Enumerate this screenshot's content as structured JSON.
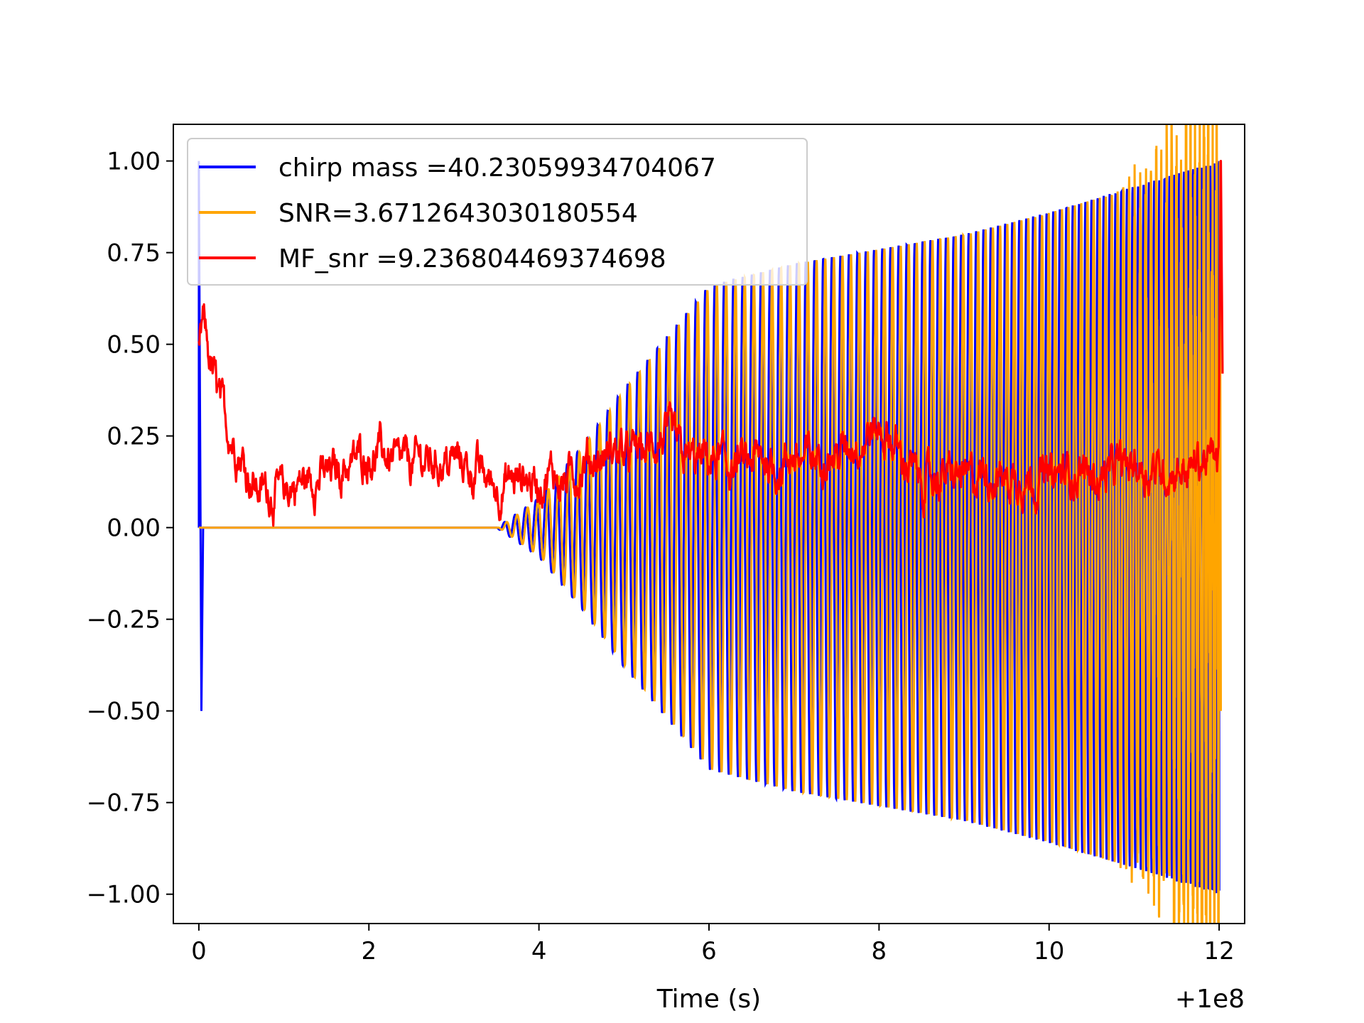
{
  "chart_data": {
    "type": "line",
    "title": "",
    "xlabel": "Time (s)",
    "ylabel": "",
    "x_offset_label": "+1e8",
    "xlim": [
      -0.3,
      12.3
    ],
    "ylim": [
      -1.08,
      1.1
    ],
    "xticks": [
      0,
      2,
      4,
      6,
      8,
      10,
      12
    ],
    "xtick_labels": [
      "0",
      "2",
      "4",
      "6",
      "8",
      "10",
      "12"
    ],
    "yticks": [
      1.0,
      0.75,
      0.5,
      0.25,
      0.0,
      -0.25,
      -0.5,
      -0.75,
      -1.0
    ],
    "ytick_labels": [
      "1.00",
      "0.75",
      "0.50",
      "0.25",
      "0.00",
      "−0.25",
      "−0.50",
      "−0.75",
      "−1.00"
    ],
    "grid": false,
    "legend_position": "upper-left",
    "series": [
      {
        "name": "chirp mass =40.23059934704067",
        "color": "#0000ff",
        "kind": "chirp-waveform",
        "spike_points": [
          [
            0.0,
            0.0
          ],
          [
            0.0,
            1.0
          ],
          [
            0.03,
            -0.5
          ],
          [
            0.05,
            0.0
          ]
        ],
        "zero_until": 3.5,
        "merger_time": 12.0,
        "envelope": [
          [
            3.5,
            0.0
          ],
          [
            4.0,
            0.08
          ],
          [
            4.5,
            0.22
          ],
          [
            5.0,
            0.38
          ],
          [
            5.5,
            0.52
          ],
          [
            6.0,
            0.66
          ],
          [
            7.0,
            0.72
          ],
          [
            8.0,
            0.76
          ],
          [
            9.0,
            0.8
          ],
          [
            10.0,
            0.86
          ],
          [
            11.0,
            0.93
          ],
          [
            12.0,
            1.0
          ]
        ],
        "negative_peak_end": -0.99,
        "cycles_start_to_merger": 95
      },
      {
        "name": "SNR=3.6712643030180554",
        "color": "#ffa500",
        "kind": "noisy-chirp",
        "zero_until": 3.5,
        "phase_lag_s": 0.025,
        "envelope": [
          [
            3.5,
            0.0
          ],
          [
            4.0,
            0.08
          ],
          [
            4.5,
            0.22
          ],
          [
            5.0,
            0.38
          ],
          [
            5.5,
            0.52
          ],
          [
            6.0,
            0.66
          ],
          [
            7.0,
            0.72
          ],
          [
            8.0,
            0.76
          ],
          [
            9.0,
            0.8
          ],
          [
            10.0,
            0.86
          ],
          [
            11.0,
            0.93
          ],
          [
            12.0,
            1.0
          ]
        ],
        "final_value": -0.5
      },
      {
        "name": "MF_snr =9.236804469374698",
        "color": "#ff0000",
        "kind": "matched-filter-snr",
        "trend": [
          [
            0.0,
            0.48
          ],
          [
            0.05,
            0.55
          ],
          [
            0.15,
            0.42
          ],
          [
            0.3,
            0.3
          ],
          [
            0.5,
            0.2
          ],
          [
            0.7,
            0.12
          ],
          [
            1.0,
            0.1
          ],
          [
            1.5,
            0.14
          ],
          [
            2.0,
            0.22
          ],
          [
            2.5,
            0.18
          ],
          [
            3.0,
            0.2
          ],
          [
            3.5,
            0.12
          ],
          [
            4.0,
            0.12
          ],
          [
            4.5,
            0.15
          ],
          [
            5.0,
            0.2
          ],
          [
            5.5,
            0.22
          ],
          [
            6.0,
            0.17
          ],
          [
            6.5,
            0.16
          ],
          [
            7.0,
            0.18
          ],
          [
            7.5,
            0.2
          ],
          [
            8.0,
            0.26
          ],
          [
            8.5,
            0.12
          ],
          [
            9.0,
            0.14
          ],
          [
            9.5,
            0.13
          ],
          [
            10.0,
            0.15
          ],
          [
            10.5,
            0.14
          ],
          [
            11.0,
            0.19
          ],
          [
            11.5,
            0.16
          ],
          [
            12.0,
            0.18
          ],
          [
            12.02,
            1.0
          ],
          [
            12.04,
            0.42
          ]
        ],
        "noise_amplitude": 0.09,
        "min_value": 0.0
      }
    ]
  }
}
